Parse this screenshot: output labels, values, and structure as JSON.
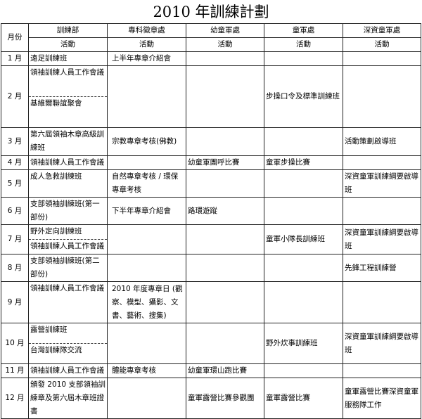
{
  "title": "2010 年訓練計劃",
  "header": {
    "month": "月份",
    "departments": [
      "訓練部",
      "專科徽章處",
      "幼童軍處",
      "童軍處",
      "深資童軍處"
    ],
    "activity": "活動"
  },
  "rows": [
    {
      "month": "1 月",
      "training": [
        "遠足訓練班"
      ],
      "badge": "上半年專章介紹會",
      "cub": "",
      "scout": "",
      "venture": ""
    },
    {
      "month": "2 月",
      "training": [
        "領袖訓練人員工作會議",
        "基維爾聯誼聚會"
      ],
      "badge": "",
      "cub": "",
      "scout": "步操口令及標準訓練班",
      "venture": ""
    },
    {
      "month": "3 月",
      "training": [
        "第六屆領袖木章高級訓練班"
      ],
      "badge": "宗教專章考核(佛教)",
      "cub": "",
      "scout": "",
      "venture": "活動策劃啟導班"
    },
    {
      "month": "4 月",
      "training": [
        "領袖訓練人員工作會議"
      ],
      "badge": "",
      "cub": "幼童軍團呼比賽",
      "scout": "童軍步操比賽",
      "venture": ""
    },
    {
      "month": "5 月",
      "training": [
        "成人急救訓練班"
      ],
      "badge": "自然專章考核 / 環保專章考核",
      "cub": "",
      "scout": "",
      "venture": "深資童軍訓練綱要啟導班"
    },
    {
      "month": "6 月",
      "training": [
        "支部領袖訓練班(第一部份)"
      ],
      "badge": "下半年專章介紹會",
      "cub": "路環遊蹤",
      "scout": "",
      "venture": ""
    },
    {
      "month": "7 月",
      "training": [
        "野外定向訓練班",
        "領袖訓練人員工作會議"
      ],
      "badge": "",
      "cub": "",
      "scout": "童軍小隊長訓練班",
      "venture": "深資童軍訓練綱要啟導班"
    },
    {
      "month": "8 月",
      "training": [
        "支部領袖訓練班(第二部份)"
      ],
      "badge": "",
      "cub": "",
      "scout": "",
      "venture": "先鋒工程訓練營"
    },
    {
      "month": "9 月",
      "training": [
        "領袖訓練人員工作會議"
      ],
      "badge": "2010 年度專章日 (觀察、模型、攝影、文書、藝術、搜集)",
      "cub": "",
      "scout": "",
      "venture": ""
    },
    {
      "month": "10 月",
      "training": [
        "露營訓練班",
        "台灣訓練隊交流"
      ],
      "badge": "",
      "cub": "",
      "scout": "野外炊事訓練班",
      "venture": "深資童軍訓練綱要啟導班"
    },
    {
      "month": "11 月",
      "training": [
        "領袖訓練人員工作會議"
      ],
      "badge": "體能專章考核",
      "cub": "幼童軍環山跑比賽",
      "scout": "",
      "venture": ""
    },
    {
      "month": "12 月",
      "training": [
        "頒發 2010 支部領袖訓練章及第六屆木章班證書"
      ],
      "badge": "",
      "cub": "童軍露營比賽參觀團",
      "scout": "童軍露營比賽",
      "venture": "童軍露營比賽深資童軍服務隊工作"
    }
  ]
}
